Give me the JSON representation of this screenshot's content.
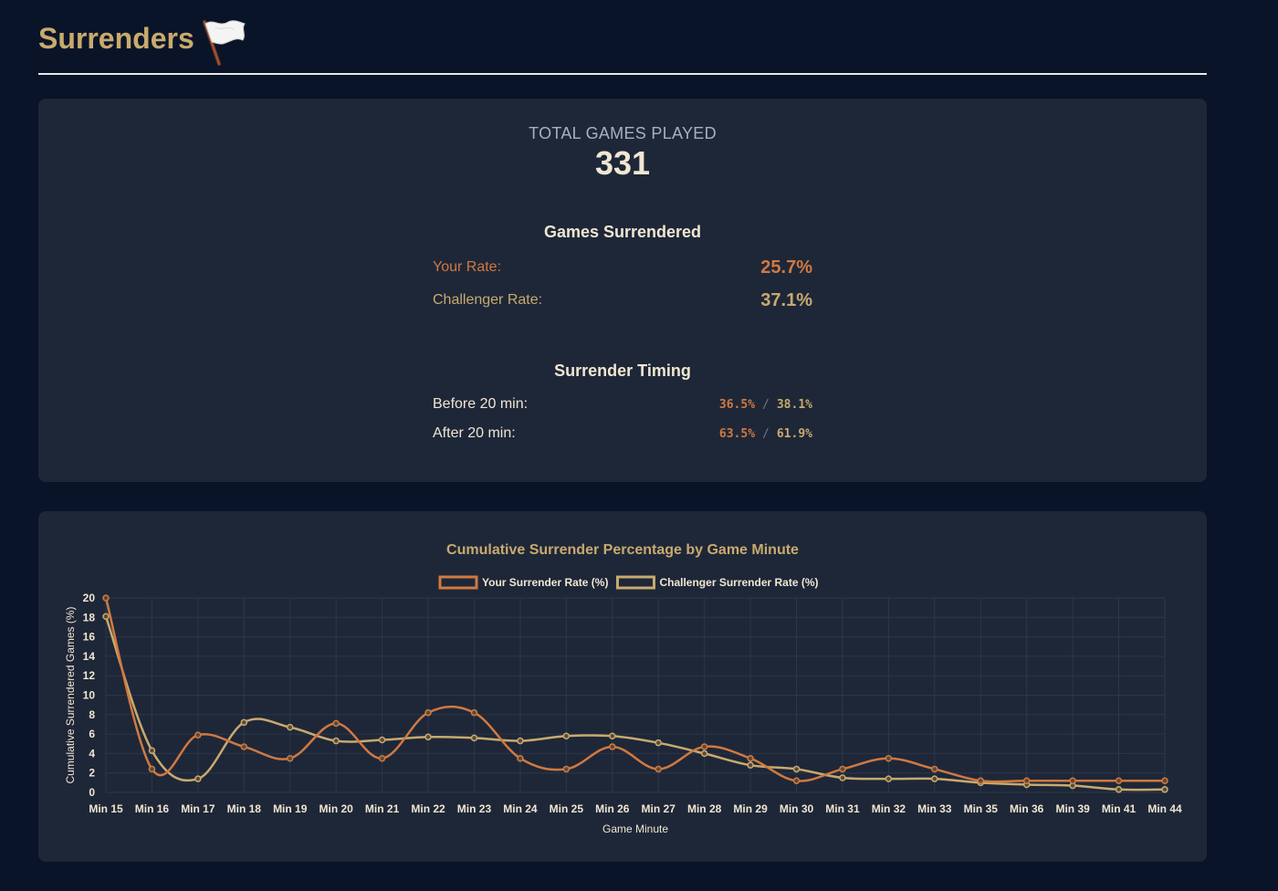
{
  "header": {
    "title": "Surrenders",
    "icon": "white-flag-icon"
  },
  "stats": {
    "total_label": "TOTAL GAMES PLAYED",
    "total_value": "331",
    "surrendered_title": "Games Surrendered",
    "your_rate_label": "Your Rate:",
    "your_rate_value": "25.7%",
    "challenger_rate_label": "Challenger Rate:",
    "challenger_rate_value": "37.1%",
    "timing_title": "Surrender Timing",
    "before_label": "Before 20 min:",
    "before_yours": "36.5%",
    "before_challenger": "38.1%",
    "after_label": "After 20 min:",
    "after_yours": "63.5%",
    "after_challenger": "61.9%",
    "separator": "/"
  },
  "colors": {
    "yours": "#d07940",
    "challenger": "#c8aa6e",
    "title": "#c8aa6e",
    "background": "#0a1428",
    "card": "#1e2738"
  },
  "chart_data": {
    "type": "line",
    "title": "Cumulative Surrender Percentage by Game Minute",
    "xlabel": "Game Minute",
    "ylabel": "Cumulative Surrendered Games (%)",
    "ylim": [
      0,
      20
    ],
    "yticks": [
      0,
      2,
      4,
      6,
      8,
      10,
      12,
      14,
      16,
      18,
      20
    ],
    "grid": true,
    "legend": "top-center",
    "categories": [
      "Min 15",
      "Min 16",
      "Min 17",
      "Min 18",
      "Min 19",
      "Min 20",
      "Min 21",
      "Min 22",
      "Min 23",
      "Min 24",
      "Min 25",
      "Min 26",
      "Min 27",
      "Min 28",
      "Min 29",
      "Min 30",
      "Min 31",
      "Min 32",
      "Min 33",
      "Min 35",
      "Min 36",
      "Min 39",
      "Min 41",
      "Min 44"
    ],
    "series": [
      {
        "name": "Your Surrender Rate (%)",
        "color": "#d07940",
        "values": [
          20.0,
          2.4,
          5.9,
          4.7,
          3.5,
          7.1,
          3.5,
          8.2,
          8.2,
          3.5,
          2.4,
          4.7,
          2.4,
          4.7,
          3.5,
          1.2,
          2.4,
          3.5,
          2.4,
          1.2,
          1.2,
          1.2,
          1.2,
          1.2
        ]
      },
      {
        "name": "Challenger Surrender Rate (%)",
        "color": "#c8aa6e",
        "values": [
          18.1,
          4.3,
          1.4,
          7.2,
          6.7,
          5.3,
          5.4,
          5.7,
          5.6,
          5.3,
          5.8,
          5.8,
          5.1,
          4.0,
          2.8,
          2.4,
          1.5,
          1.4,
          1.4,
          1.0,
          0.8,
          0.7,
          0.3,
          0.3
        ]
      }
    ]
  }
}
